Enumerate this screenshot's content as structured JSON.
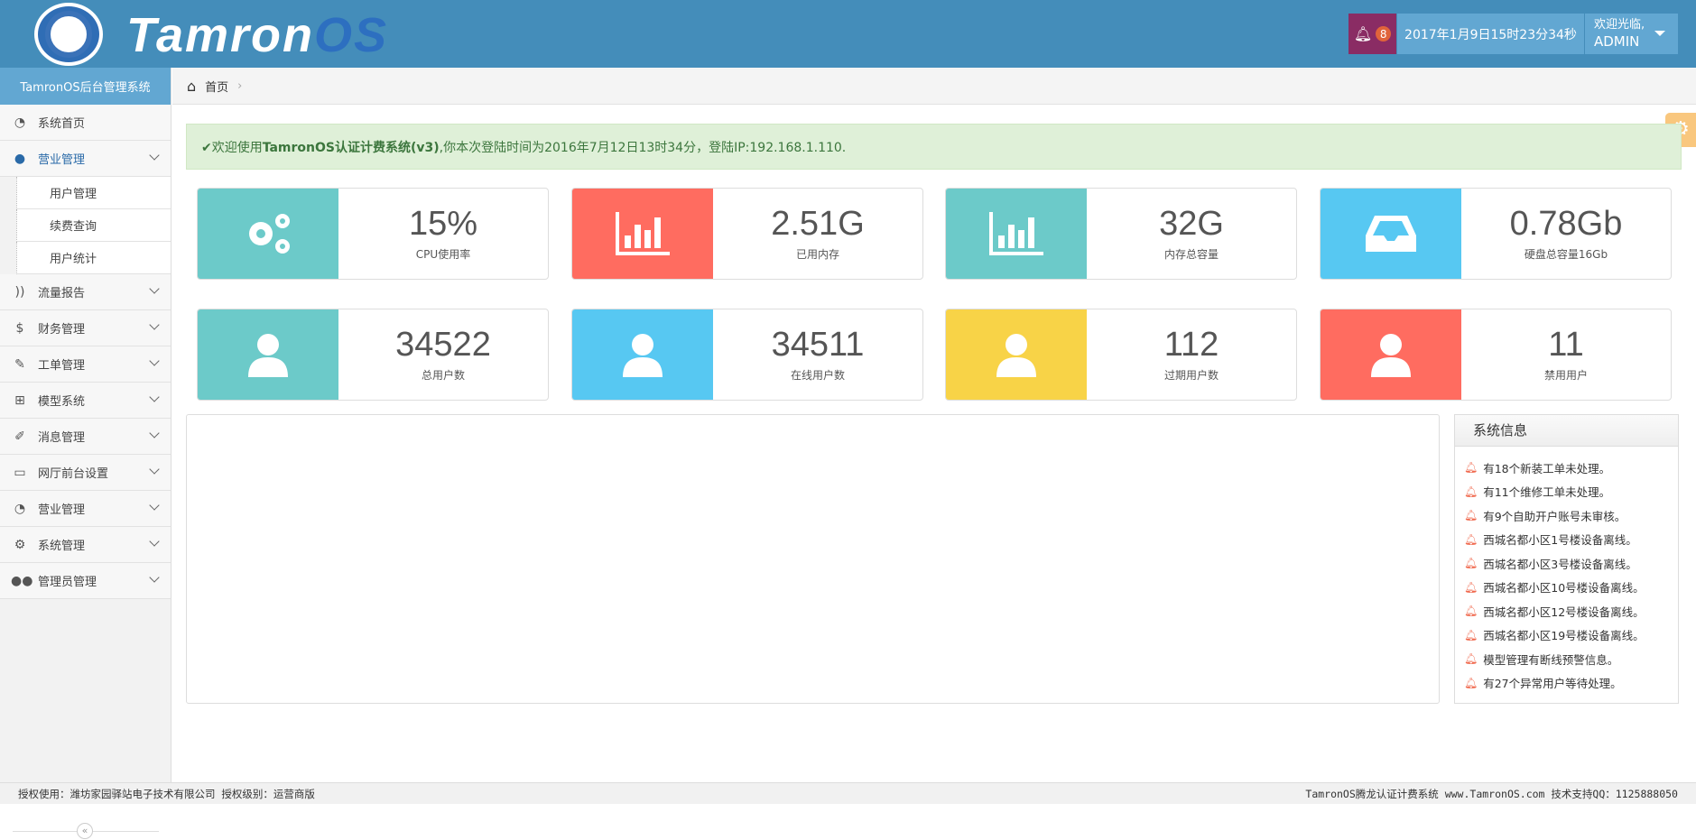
{
  "header": {
    "brand_main": "Tamron",
    "brand_os": "OS",
    "notification_count": "8",
    "datetime": "2017年1月9日15时23分34秒",
    "welcome": "欢迎光临,",
    "user": "ADMIN"
  },
  "sidebar": {
    "title": "TamronOS后台管理系统",
    "items": [
      {
        "label": "系统首页",
        "icon": "dashboard-icon",
        "glyph": "◔"
      },
      {
        "label": "营业管理",
        "icon": "user-icon",
        "glyph": "●",
        "open": true,
        "sub": [
          "用户管理",
          "续费查询",
          "用户统计"
        ]
      },
      {
        "label": "流量报告",
        "icon": "rss-icon",
        "glyph": "))"
      },
      {
        "label": "财务管理",
        "icon": "dollar-icon",
        "glyph": "$"
      },
      {
        "label": "工单管理",
        "icon": "wrench-icon",
        "glyph": "✎"
      },
      {
        "label": "模型系统",
        "icon": "sitemap-icon",
        "glyph": "⊞"
      },
      {
        "label": "消息管理",
        "icon": "edit-icon",
        "glyph": "✐"
      },
      {
        "label": "网厅前台设置",
        "icon": "desktop-icon",
        "glyph": "▭"
      },
      {
        "label": "营业管理",
        "icon": "dashboard-icon",
        "glyph": "◔"
      },
      {
        "label": "系统管理",
        "icon": "gears-icon",
        "glyph": "⚙"
      },
      {
        "label": "管理员管理",
        "icon": "users-icon",
        "glyph": "●●"
      }
    ]
  },
  "breadcrumb": {
    "home": "首页"
  },
  "alert": {
    "prefix": "✔欢迎使用",
    "product": "TamronOS认证计费系统(v3)",
    "rest": ",你本次登陆时间为2016年7月12日13时34分，登陆IP:192.168.1.110."
  },
  "stats": [
    {
      "value": "15%",
      "label": "CPU使用率",
      "icon": "gears-icon",
      "color": "#6ccac9"
    },
    {
      "value": "2.51G",
      "label": "已用内存",
      "icon": "bar-chart-icon",
      "color": "#ff6c60"
    },
    {
      "value": "32G",
      "label": "内存总容量",
      "icon": "bar-chart-icon",
      "color": "#6ccac9"
    },
    {
      "value": "0.78Gb",
      "label": "硬盘总容量16Gb",
      "icon": "inbox-icon",
      "color": "#57c8f2"
    },
    {
      "value": "34522",
      "label": "总用户数",
      "icon": "user-icon",
      "color": "#6ccac9"
    },
    {
      "value": "34511",
      "label": "在线用户数",
      "icon": "user-icon",
      "color": "#57c8f2"
    },
    {
      "value": "112",
      "label": "过期用户数",
      "icon": "user-icon",
      "color": "#f8d347"
    },
    {
      "value": "11",
      "label": "禁用用户",
      "icon": "user-icon",
      "color": "#ff6c60"
    }
  ],
  "system_info": {
    "title": "系统信息",
    "items": [
      "有18个新装工单未处理。",
      "有11个维修工单未处理。",
      "有9个自助开户账号未审核。",
      "西城名都小区1号楼设备离线。",
      "西城名都小区3号楼设备离线。",
      "西城名都小区10号楼设备离线。",
      "西城名都小区12号楼设备离线。",
      "西城名都小区19号楼设备离线。",
      "模型管理有断线预警信息。",
      "有27个异常用户等待处理。"
    ]
  },
  "footer": {
    "left": "授权使用：潍坊家园驿站电子技术有限公司 授权级别：运营商版",
    "right": "TamronOS腾龙认证计费系统 www.TamronOS.com 技术支持QQ：1125888050"
  }
}
